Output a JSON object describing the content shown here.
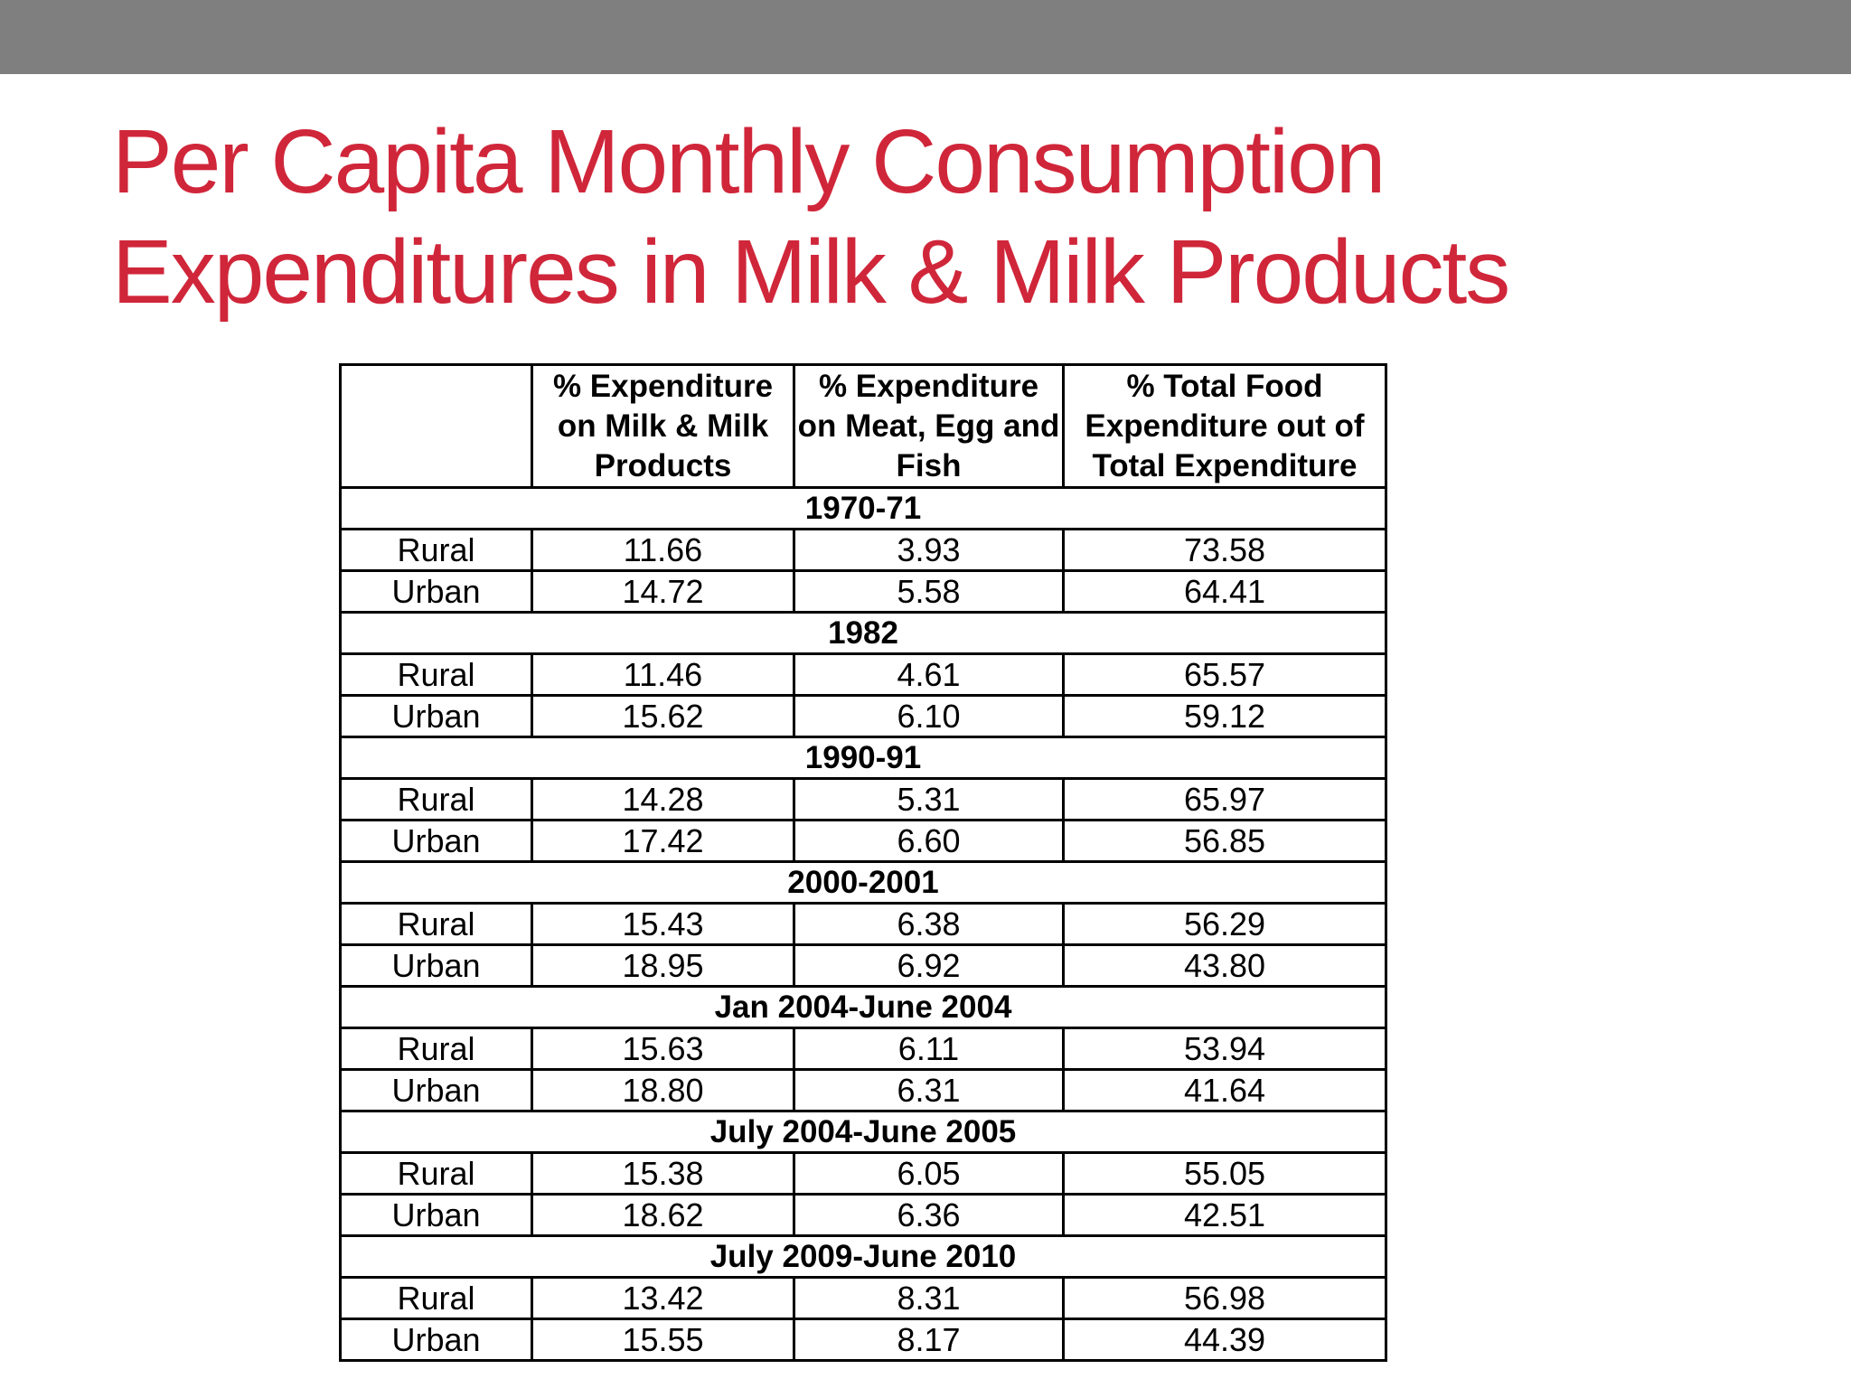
{
  "slide": {
    "title_line1": "Per Capita Monthly Consumption",
    "title_line2": "Expenditures in Milk & Milk Products"
  },
  "table": {
    "headers": [
      "",
      "% Expenditure on Milk & Milk Products",
      "% Expenditure on Meat, Egg and Fish",
      "% Total Food Expenditure out of Total Expenditure"
    ],
    "groups": [
      {
        "period": "1970-71",
        "rows": [
          {
            "area": "Rural",
            "milk": "11.66",
            "meat": "3.93",
            "food": "73.58"
          },
          {
            "area": "Urban",
            "milk": "14.72",
            "meat": "5.58",
            "food": "64.41"
          }
        ]
      },
      {
        "period": "1982",
        "rows": [
          {
            "area": "Rural",
            "milk": "11.46",
            "meat": "4.61",
            "food": "65.57"
          },
          {
            "area": "Urban",
            "milk": "15.62",
            "meat": "6.10",
            "food": "59.12"
          }
        ]
      },
      {
        "period": "1990-91",
        "rows": [
          {
            "area": "Rural",
            "milk": "14.28",
            "meat": "5.31",
            "food": "65.97"
          },
          {
            "area": "Urban",
            "milk": "17.42",
            "meat": "6.60",
            "food": "56.85"
          }
        ]
      },
      {
        "period": "2000-2001",
        "rows": [
          {
            "area": "Rural",
            "milk": "15.43",
            "meat": "6.38",
            "food": "56.29"
          },
          {
            "area": "Urban",
            "milk": "18.95",
            "meat": "6.92",
            "food": "43.80"
          }
        ]
      },
      {
        "period": "Jan 2004-June 2004",
        "rows": [
          {
            "area": "Rural",
            "milk": "15.63",
            "meat": "6.11",
            "food": "53.94"
          },
          {
            "area": "Urban",
            "milk": "18.80",
            "meat": "6.31",
            "food": "41.64"
          }
        ]
      },
      {
        "period": "July 2004-June 2005",
        "rows": [
          {
            "area": "Rural",
            "milk": "15.38",
            "meat": "6.05",
            "food": "55.05"
          },
          {
            "area": "Urban",
            "milk": "18.62",
            "meat": "6.36",
            "food": "42.51"
          }
        ]
      },
      {
        "period": "July 2009-June 2010",
        "rows": [
          {
            "area": "Rural",
            "milk": "13.42",
            "meat": "8.31",
            "food": "56.98"
          },
          {
            "area": "Urban",
            "milk": "15.55",
            "meat": "8.17",
            "food": "44.39"
          }
        ]
      }
    ]
  }
}
